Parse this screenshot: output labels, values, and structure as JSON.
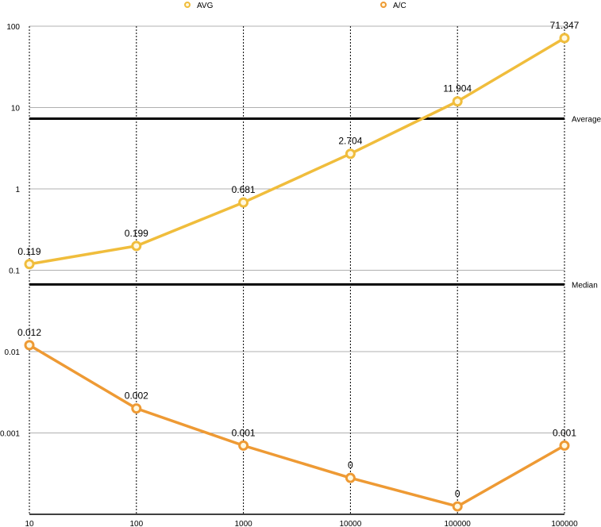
{
  "chart_data": {
    "type": "line",
    "title": "",
    "xlabel": "",
    "ylabel": "",
    "yscale": "log",
    "ylim": [
      0.0001,
      100
    ],
    "grid": {
      "horizontal": true,
      "vertical_dotted": true
    },
    "legend_placement": "top",
    "categories": [
      "10",
      "100",
      "1000",
      "10000",
      "100000",
      "100000"
    ],
    "y_ticks": [
      {
        "value": 100,
        "label": "100"
      },
      {
        "value": 10,
        "label": "10"
      },
      {
        "value": 1,
        "label": "1"
      },
      {
        "value": 0.1,
        "label": "0.1"
      },
      {
        "value": 0.01,
        "label": "0.01"
      },
      {
        "value": 0.001,
        "label": "0.001"
      }
    ],
    "series": [
      {
        "name": "AVG",
        "color": "#f0bd3c",
        "values": [
          0.119,
          0.199,
          0.681,
          2.704,
          11.904,
          71.347
        ],
        "labels": [
          "0.119",
          "0.199",
          "0.681",
          "2.704",
          "11.904",
          "71.347"
        ]
      },
      {
        "name": "A/C",
        "color": "#ee9a34",
        "values": [
          0.012,
          0.002,
          0.0007,
          0.00028,
          0.000125,
          0.0007
        ],
        "labels": [
          "0.012",
          "0.002",
          "0.001",
          "0",
          "0",
          "0.001"
        ]
      }
    ],
    "reference_lines": [
      {
        "label": "Average",
        "value": 7.3,
        "color": "#000000"
      },
      {
        "label": "Median",
        "value": 0.067,
        "color": "#000000"
      }
    ]
  }
}
